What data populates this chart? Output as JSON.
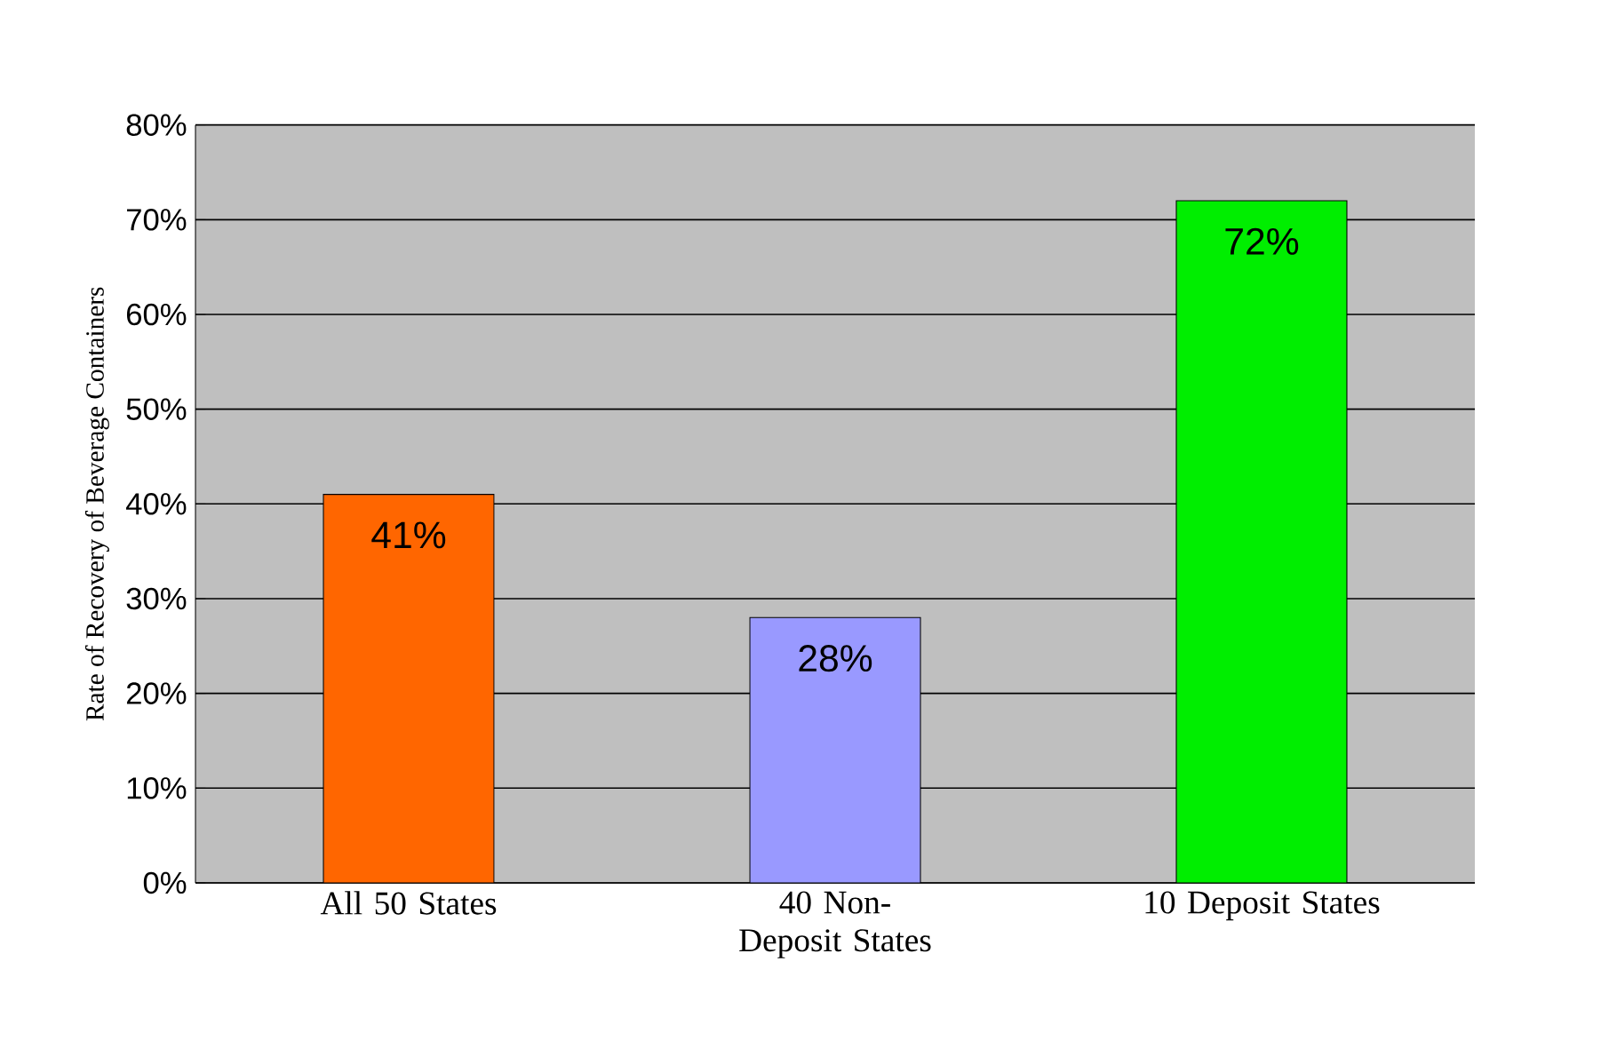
{
  "chart_data": {
    "type": "bar",
    "ylabel": "Rate of Recovery of Beverage Containers",
    "categories": [
      "All 50 States",
      "40 Non-Deposit States",
      "10 Deposit States"
    ],
    "values": [
      41,
      28,
      72
    ],
    "colors": [
      "#ff6600",
      "#9999ff",
      "#00ee00"
    ],
    "value_labels": [
      "41%",
      "28%",
      "72%"
    ],
    "ylim": [
      0,
      80
    ],
    "yticks": [
      {
        "value": 0,
        "label": "0%"
      },
      {
        "value": 10,
        "label": "10%"
      },
      {
        "value": 20,
        "label": "20%"
      },
      {
        "value": 30,
        "label": "30%"
      },
      {
        "value": 40,
        "label": "40%"
      },
      {
        "value": 50,
        "label": "50%"
      },
      {
        "value": 60,
        "label": "60%"
      },
      {
        "value": 70,
        "label": "70%"
      },
      {
        "value": 80,
        "label": "80%"
      }
    ],
    "grid": "y"
  }
}
